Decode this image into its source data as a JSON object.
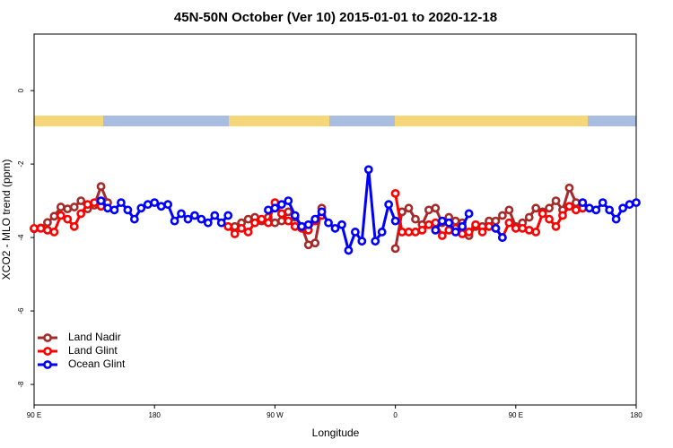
{
  "chart_data": {
    "type": "line",
    "title": "45N-50N October (Ver 10)   2015-01-01 to 2020-12-18",
    "x_label": "Longitude",
    "y_label": "XCO2 - MLO trend (ppm)",
    "xlim": [
      90,
      540
    ],
    "xticks": [
      {
        "value": 90,
        "label": "90 E"
      },
      {
        "value": 180,
        "label": "180"
      },
      {
        "value": 270,
        "label": "90 W"
      },
      {
        "value": 360,
        "label": "0"
      },
      {
        "value": 450,
        "label": "90 E"
      },
      {
        "value": 540,
        "label": "180"
      }
    ],
    "ylim": [
      -8.56,
      1.54
    ],
    "yticks": [
      0,
      -2,
      -4,
      -6,
      -8
    ],
    "legend": "bottomleft",
    "series": [
      {
        "name": "Land Nadir",
        "color": "#a52a2a",
        "x": [
          90,
          95,
          100,
          105,
          110,
          115,
          120,
          125,
          130,
          135,
          140,
          145,
          150,
          240,
          245,
          250,
          255,
          260,
          265,
          270,
          275,
          280,
          285,
          290,
          295,
          300,
          305,
          310,
          360,
          365,
          370,
          375,
          380,
          385,
          390,
          395,
          400,
          405,
          410,
          415,
          420,
          425,
          430,
          435,
          440,
          445,
          450,
          455,
          460,
          465,
          470,
          475,
          480,
          485,
          490,
          495,
          500
        ],
        "values": [
          -3.76,
          -3.74,
          -3.59,
          -3.42,
          -3.17,
          -3.22,
          -3.17,
          -3.0,
          -3.22,
          -3.12,
          -2.61,
          -3.05,
          null,
          -3.7,
          -3.6,
          -3.5,
          -3.45,
          -3.55,
          -3.45,
          -3.6,
          -3.55,
          -3.3,
          -3.45,
          -3.7,
          -4.2,
          -4.15,
          -3.2,
          null,
          -4.3,
          -3.3,
          -3.2,
          -3.5,
          -3.65,
          -3.25,
          -3.2,
          -3.6,
          -3.45,
          -3.55,
          -3.6,
          -3.95,
          -3.7,
          -3.7,
          -3.55,
          -3.55,
          -3.4,
          -3.25,
          -3.7,
          -3.6,
          -3.45,
          -3.2,
          -3.3,
          -3.2,
          -3.0,
          -3.25,
          -2.65,
          -3.05,
          -3.2
        ]
      },
      {
        "name": "Land Glint",
        "color": "#ff0000",
        "x": [
          90,
          95,
          100,
          105,
          110,
          115,
          120,
          125,
          130,
          135,
          140,
          145,
          235,
          240,
          245,
          250,
          255,
          260,
          265,
          270,
          275,
          280,
          285,
          290,
          295,
          300,
          305,
          310,
          360,
          365,
          370,
          375,
          380,
          385,
          390,
          395,
          400,
          405,
          410,
          415,
          420,
          425,
          430,
          435,
          440,
          445,
          450,
          455,
          460,
          465,
          470,
          475,
          480,
          485,
          490,
          495,
          500
        ],
        "values": [
          -3.75,
          -3.75,
          -3.8,
          -3.85,
          -3.4,
          -3.5,
          -3.7,
          -3.35,
          -3.1,
          -3.05,
          -3.15,
          null,
          -3.7,
          -3.9,
          -3.75,
          -3.85,
          -3.6,
          -3.5,
          -3.6,
          -3.05,
          -3.35,
          -3.55,
          -3.7,
          -3.75,
          -3.8,
          -3.55,
          -3.4,
          null,
          -2.8,
          -3.85,
          -3.85,
          -3.85,
          -3.8,
          -3.65,
          -3.6,
          -3.95,
          -3.8,
          -3.75,
          -3.9,
          -3.85,
          -3.65,
          -3.85,
          -3.7,
          -3.75,
          -4.0,
          -3.6,
          -3.75,
          -3.75,
          -3.8,
          -3.85,
          -3.35,
          -3.5,
          -3.7,
          -3.4,
          -3.15,
          -3.25,
          -3.2
        ]
      },
      {
        "name": "Ocean Glint",
        "color": "#0000ff",
        "x": [
          140,
          145,
          150,
          155,
          160,
          165,
          170,
          175,
          180,
          185,
          190,
          195,
          200,
          205,
          210,
          215,
          220,
          225,
          230,
          235,
          240,
          265,
          270,
          275,
          280,
          285,
          290,
          295,
          300,
          305,
          310,
          315,
          320,
          325,
          330,
          335,
          340,
          345,
          350,
          355,
          360,
          365,
          390,
          395,
          400,
          405,
          410,
          415,
          420,
          435,
          440,
          445,
          500,
          505,
          510,
          515,
          520,
          525,
          530,
          535,
          540
        ],
        "values": [
          -3.0,
          -3.2,
          -3.25,
          -3.05,
          -3.25,
          -3.5,
          -3.2,
          -3.1,
          -3.05,
          -3.15,
          -3.1,
          -3.55,
          -3.35,
          -3.5,
          -3.4,
          -3.5,
          -3.6,
          -3.4,
          -3.6,
          -3.4,
          null,
          -3.25,
          -3.2,
          -3.1,
          -3.0,
          -3.4,
          -3.7,
          -3.65,
          -3.5,
          -3.3,
          -3.6,
          -3.75,
          -3.65,
          -4.35,
          -3.85,
          -4.1,
          -2.15,
          -4.1,
          -3.85,
          -3.1,
          -3.55,
          null,
          -3.8,
          -3.55,
          -3.6,
          -3.85,
          -3.7,
          -3.35,
          null,
          -3.75,
          -4.0,
          null,
          -3.05,
          -3.2,
          -3.25,
          -3.05,
          -3.25,
          -3.5,
          -3.2,
          -3.1,
          -3.05
        ]
      }
    ]
  }
}
